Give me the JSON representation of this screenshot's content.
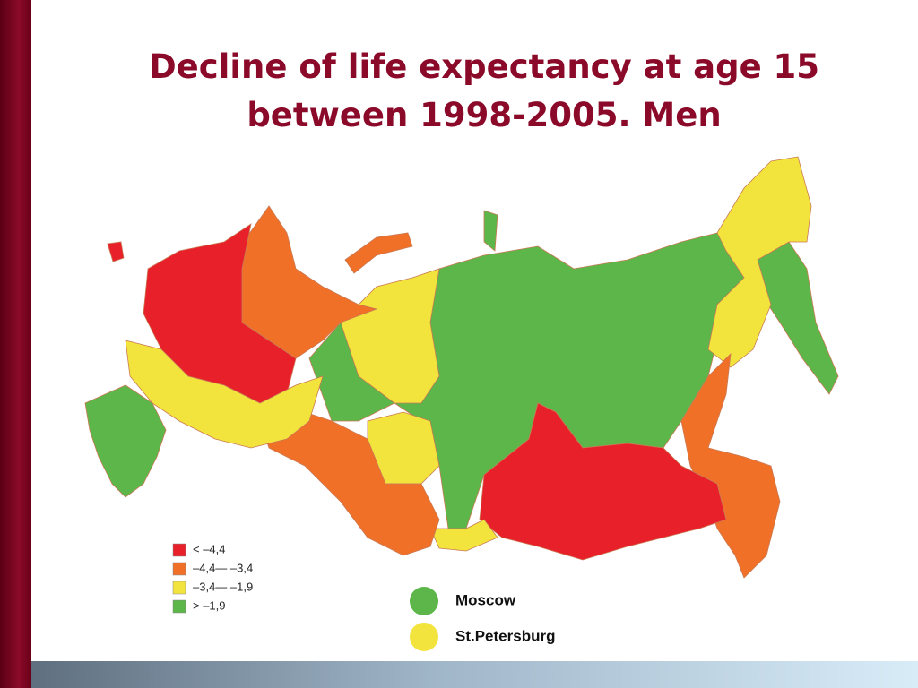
{
  "title_lines": [
    "Decline of life expectancy at age 15",
    "between 1998-2005. Men"
  ],
  "legend": [
    {
      "label": "< –4,4",
      "color": "#e8202a"
    },
    {
      "label": "–4,4— –3,4",
      "color": "#f07028"
    },
    {
      "label": "–3,4— –1,9",
      "color": "#f2e43c"
    },
    {
      "label": "> –1,9",
      "color": "#5cb64a"
    }
  ],
  "cities": [
    {
      "label": "Moscow",
      "color": "#5cb64a"
    },
    {
      "label": "St.Petersburg",
      "color": "#f2e43c"
    }
  ]
}
